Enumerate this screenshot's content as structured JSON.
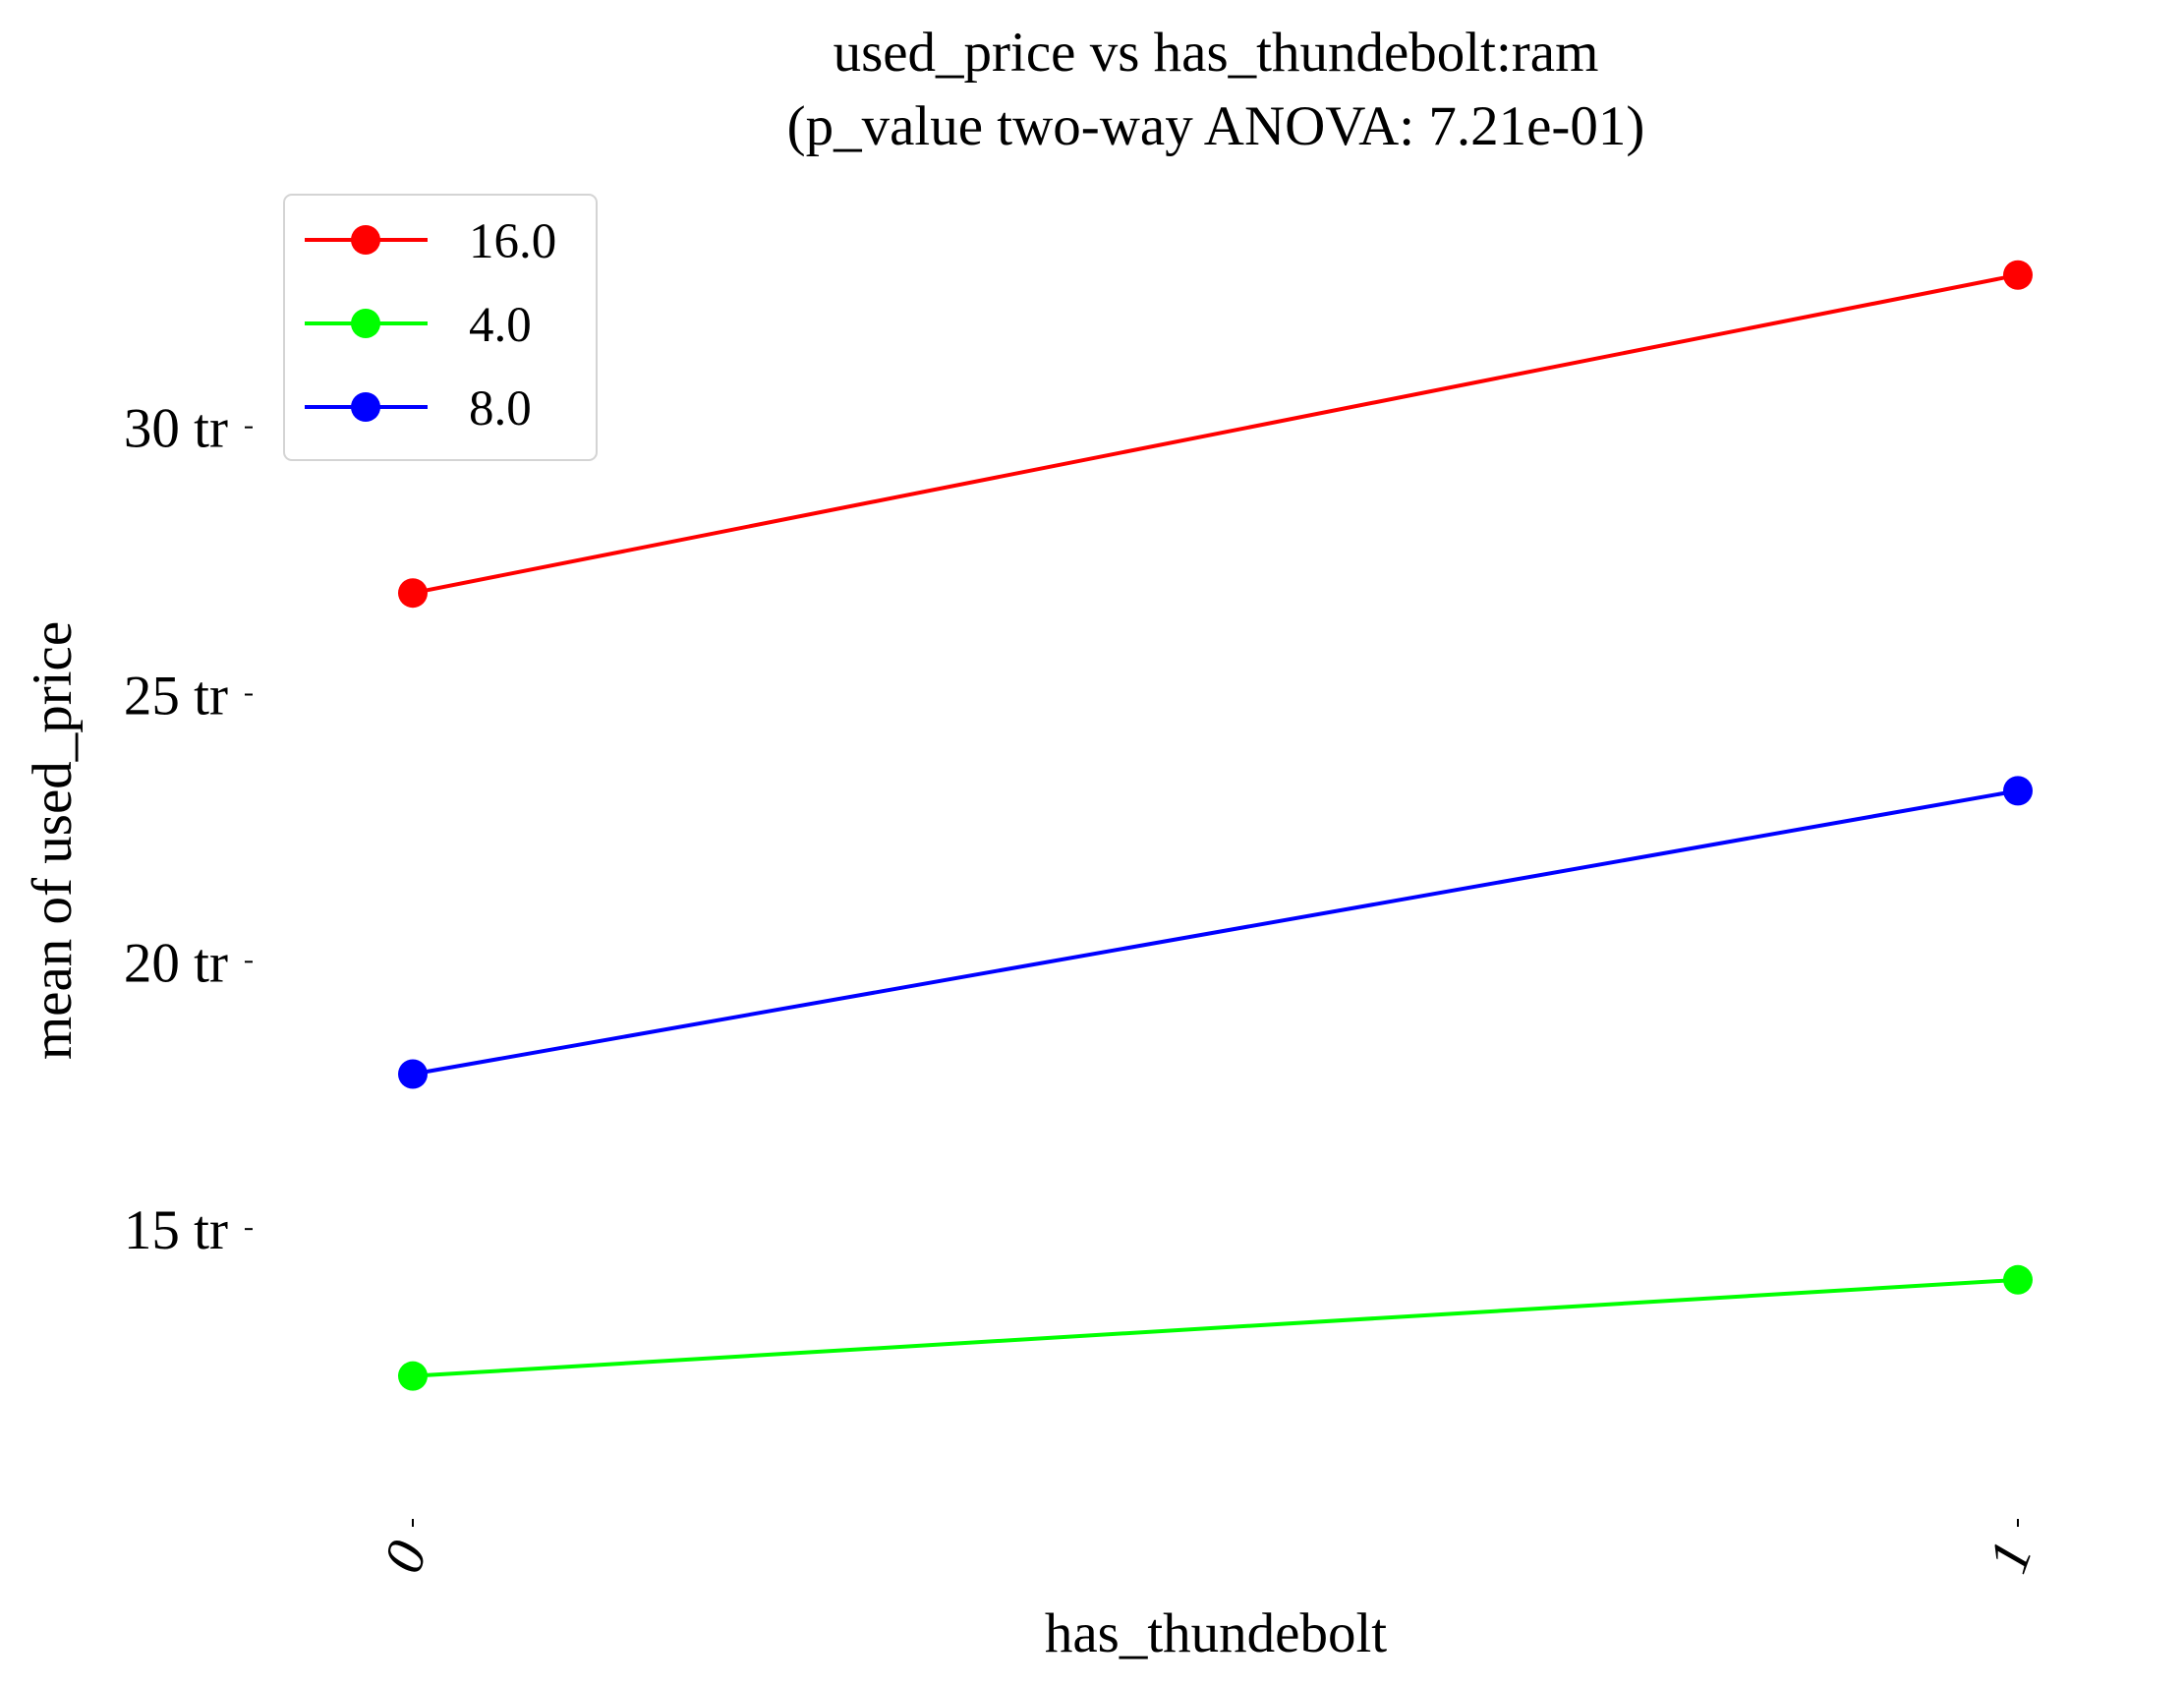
{
  "chart_data": {
    "type": "line",
    "title": "used_price vs has_thundebolt:ram",
    "subtitle": "(p_value two-way ANOVA: 7.21e-01)",
    "xlabel": "has_thundebolt",
    "ylabel": "mean of used_price",
    "categories": [
      "0",
      "1"
    ],
    "yticks": [
      15,
      20,
      25,
      30
    ],
    "ytick_labels": [
      "15 tr",
      "20 tr",
      "25 tr",
      "30 tr"
    ],
    "ylim": [
      10,
      34.5
    ],
    "grid": false,
    "legend_position": "top-left",
    "series": [
      {
        "name": "16.0",
        "color": "#ff0000",
        "values": [
          26.9,
          32.85
        ]
      },
      {
        "name": "4.0",
        "color": "#00ff00",
        "values": [
          12.25,
          14.05
        ]
      },
      {
        "name": "8.0",
        "color": "#0000ff",
        "values": [
          17.9,
          23.2
        ]
      }
    ]
  }
}
